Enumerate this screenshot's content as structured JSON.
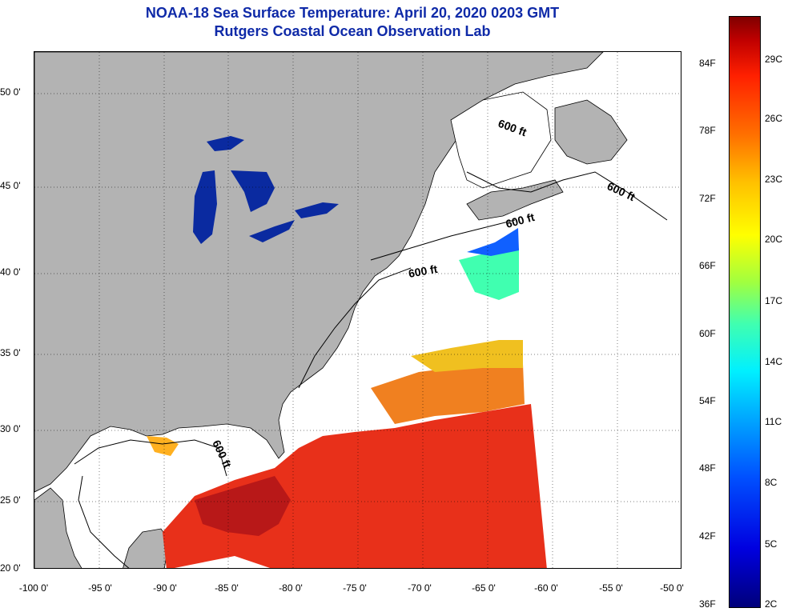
{
  "header": {
    "title": "NOAA-18 Sea Surface Temperature:  April 20, 2020 0203 GMT",
    "subtitle": "Rutgers Coastal Ocean Observation Lab"
  },
  "axes": {
    "latitude_labels": [
      "50 0'",
      "45 0'",
      "40 0'",
      "35 0'",
      "30 0'",
      "25 0'",
      "20 0'"
    ],
    "longitude_labels": [
      "-100 0'",
      "-95 0'",
      "-90 0'",
      "-85 0'",
      "-80 0'",
      "-75 0'",
      "-70 0'",
      "-65 0'",
      "-60 0'",
      "-55 0'",
      "-50 0'"
    ]
  },
  "contours": {
    "label": "600 ft",
    "count": 5
  },
  "colorbar": {
    "fahrenheit_labels": [
      "84F",
      "78F",
      "72F",
      "66F",
      "60F",
      "54F",
      "48F",
      "42F",
      "36F"
    ],
    "celsius_labels": [
      "29C",
      "26C",
      "23C",
      "20C",
      "17C",
      "14C",
      "11C",
      "8C",
      "5C",
      "2C"
    ]
  },
  "colors": {
    "land": "#b3b3b3",
    "ocean_no_data": "#ffffff",
    "lakes": "#0a2aa0",
    "title": "#0f2aa8",
    "warm_sst": "#e8301a",
    "cool_sst": "#f0c020"
  }
}
